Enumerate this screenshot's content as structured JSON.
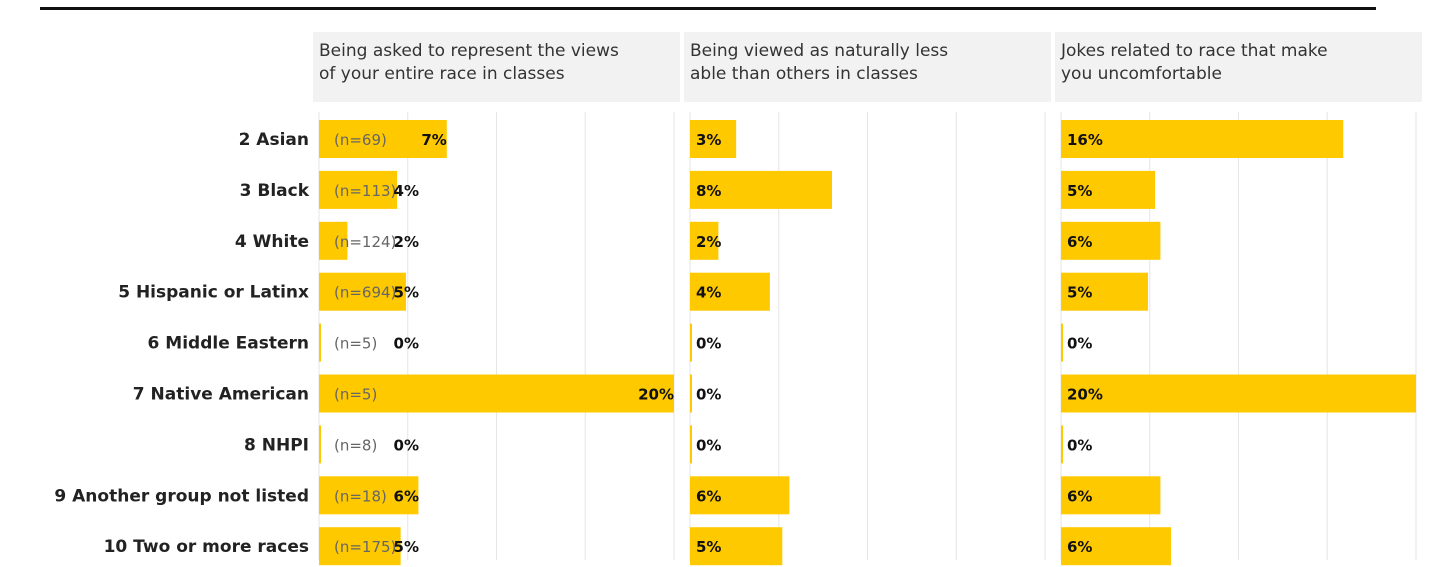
{
  "chart_data": {
    "type": "bar",
    "orientation": "horizontal",
    "categories": [
      "2 Asian",
      "3 Black",
      "4 White",
      "5 Hispanic or Latinx",
      "6 Middle Eastern",
      "7 Native American",
      "8 NHPI",
      "9 Another group not listed",
      "10 Two or more races"
    ],
    "n_labels": [
      "(n=69)",
      "(n=113)",
      "(n=124)",
      "(n=694)",
      "(n=5)",
      "(n=5)",
      "(n=8)",
      "(n=18)",
      "(n=175)"
    ],
    "xlim": [
      0,
      20
    ],
    "grid": true,
    "bar_color": "#FFC900",
    "panels": [
      {
        "title_lines": [
          "Being asked to represent the views",
          "of your entire race in classes"
        ],
        "values": [
          7.2,
          4.4,
          1.6,
          4.9,
          0,
          20,
          0,
          5.6,
          4.6
        ],
        "labels": [
          "7%",
          "4%",
          "2%",
          "5%",
          "0%",
          "20%",
          "0%",
          "6%",
          "5%"
        ]
      },
      {
        "title_lines": [
          "Being viewed as naturally less",
          "able than others in classes"
        ],
        "values": [
          2.6,
          8,
          1.6,
          4.5,
          0,
          0,
          0,
          5.6,
          5.2
        ],
        "labels": [
          "3%",
          "8%",
          "2%",
          "4%",
          "0%",
          "0%",
          "0%",
          "6%",
          "5%"
        ]
      },
      {
        "title_lines": [
          "Jokes related to race that make",
          "you uncomfortable"
        ],
        "values": [
          15.9,
          5.3,
          5.6,
          4.9,
          0,
          20,
          0,
          5.6,
          6.2
        ],
        "labels": [
          "16%",
          "5%",
          "6%",
          "5%",
          "0%",
          "20%",
          "0%",
          "6%",
          "6%"
        ]
      }
    ]
  }
}
